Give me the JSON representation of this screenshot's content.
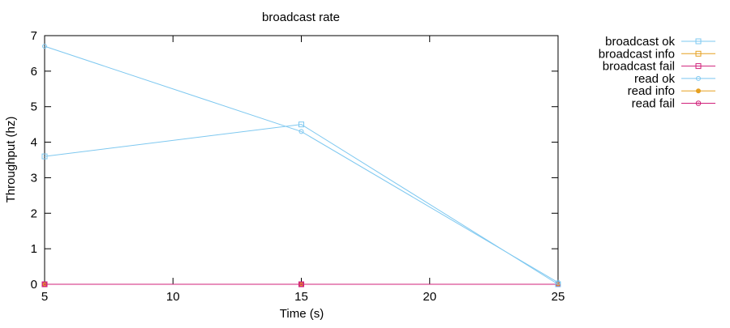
{
  "chart_data": {
    "type": "line",
    "title": "broadcast rate",
    "xlabel": "Time (s)",
    "ylabel": "Throughput (hz)",
    "xlim": [
      5,
      25
    ],
    "ylim": [
      0,
      7
    ],
    "xticks": [
      5,
      10,
      15,
      20,
      25
    ],
    "yticks": [
      0,
      1,
      2,
      3,
      4,
      5,
      6,
      7
    ],
    "grid": false,
    "legend_position": "outside-right",
    "series": [
      {
        "name": "broadcast ok",
        "color": "#7ec8f0",
        "marker": "square",
        "x": [
          5,
          15,
          25
        ],
        "y": [
          3.6,
          4.5,
          0.0
        ]
      },
      {
        "name": "broadcast info",
        "color": "#e6a020",
        "marker": "square",
        "x": [
          5,
          15,
          25
        ],
        "y": [
          0,
          0,
          0
        ]
      },
      {
        "name": "broadcast fail",
        "color": "#d0207a",
        "marker": "square",
        "x": [
          5,
          15,
          25
        ],
        "y": [
          0,
          0,
          0
        ]
      },
      {
        "name": "read ok",
        "color": "#7ec8f0",
        "marker": "circle",
        "x": [
          5,
          15,
          25
        ],
        "y": [
          6.7,
          4.3,
          0.05
        ]
      },
      {
        "name": "read info",
        "color": "#e6a020",
        "marker": "filled-circle",
        "x": [
          5,
          15,
          25
        ],
        "y": [
          0,
          0,
          0
        ]
      },
      {
        "name": "read fail",
        "color": "#d0207a",
        "marker": "circle-dot",
        "x": [
          5,
          15,
          25
        ],
        "y": [
          0,
          0,
          0
        ]
      }
    ]
  }
}
